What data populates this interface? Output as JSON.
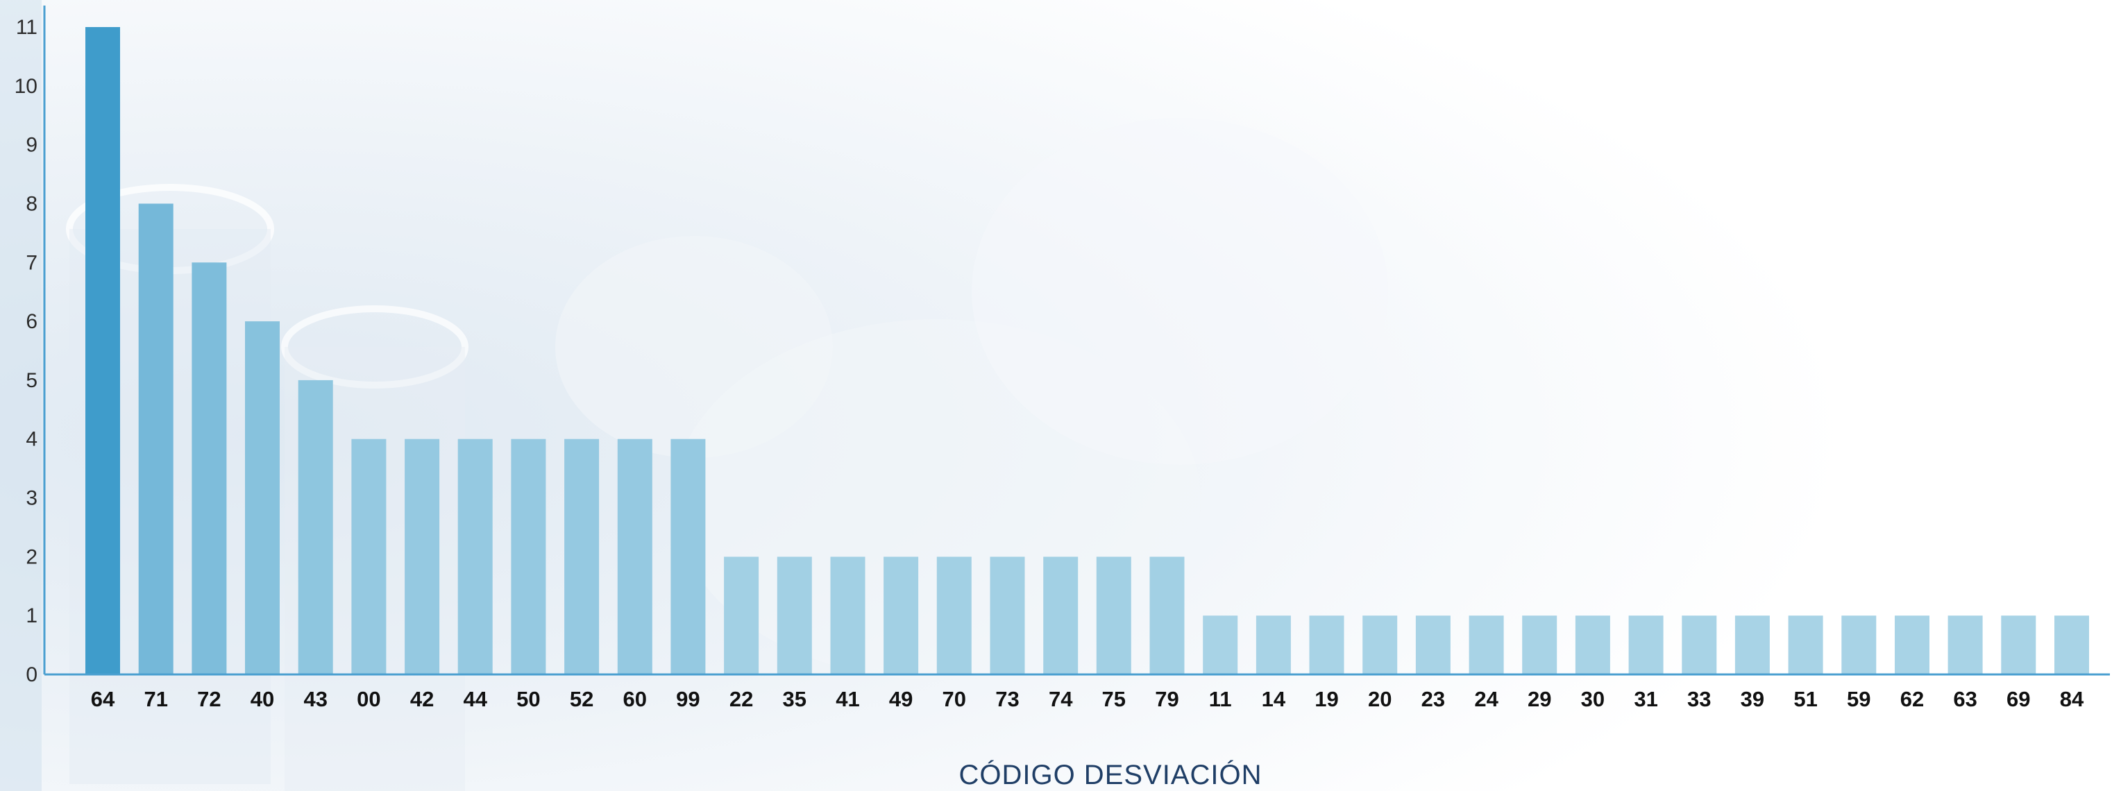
{
  "chart_data": {
    "type": "bar",
    "title": "",
    "xlabel": "CÓDIGO DESVIACIÓN",
    "ylabel": "",
    "ylim": [
      0,
      11
    ],
    "yticks": [
      0,
      1,
      2,
      3,
      4,
      5,
      6,
      7,
      8,
      9,
      10,
      11
    ],
    "grid": false,
    "categories": [
      "64",
      "71",
      "72",
      "40",
      "43",
      "00",
      "42",
      "44",
      "50",
      "52",
      "60",
      "99",
      "22",
      "35",
      "41",
      "49",
      "70",
      "73",
      "74",
      "75",
      "79",
      "11",
      "14",
      "19",
      "20",
      "23",
      "24",
      "29",
      "30",
      "31",
      "33",
      "39",
      "51",
      "59",
      "62",
      "63",
      "69",
      "84"
    ],
    "values": [
      11,
      8,
      7,
      6,
      5,
      4,
      4,
      4,
      4,
      4,
      4,
      4,
      2,
      2,
      2,
      2,
      2,
      2,
      2,
      2,
      2,
      1,
      1,
      1,
      1,
      1,
      1,
      1,
      1,
      1,
      1,
      1,
      1,
      1,
      1,
      1,
      1,
      1
    ],
    "colors": {
      "axis": "#4a9fd0",
      "bar_high": "#3f9ccb",
      "bar_low": "#a8d3e6",
      "xlabel": "#1f3e66"
    }
  }
}
